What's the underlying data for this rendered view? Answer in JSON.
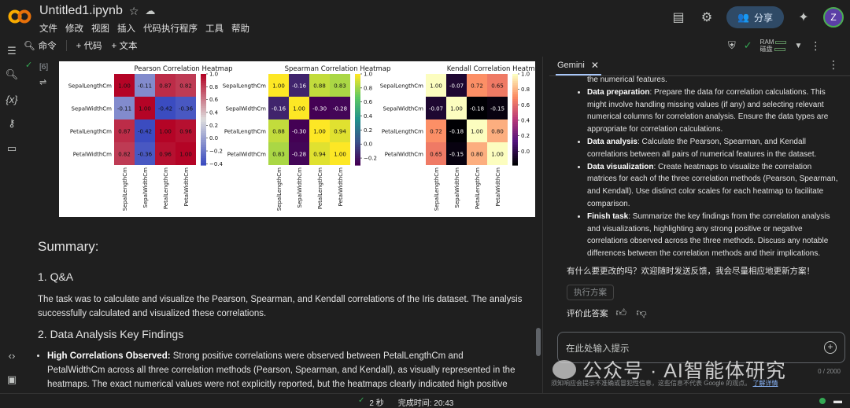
{
  "header": {
    "file_name": "Untitled1.ipynb",
    "menu": [
      "文件",
      "修改",
      "视图",
      "插入",
      "代码执行程序",
      "工具",
      "帮助"
    ],
    "share_label": "分享",
    "avatar_letter": "Z"
  },
  "toolbar": {
    "command_label": "命令",
    "code_label": "+ 代码",
    "text_label": "+ 文本",
    "ram_label": "RAM",
    "disk_label": "磁盘"
  },
  "cell": {
    "exec_count": "[6]",
    "exec_time": "2秒"
  },
  "heatmaps": [
    {
      "title": "Pearson Correlation Heatmap",
      "labels": [
        "SepalLengthCm",
        "SepalWidthCm",
        "PetalLengthCm",
        "PetalWidthCm"
      ],
      "values": [
        [
          "1.00",
          "-0.11",
          "0.87",
          "0.82"
        ],
        [
          "-0.11",
          "1.00",
          "-0.42",
          "-0.36"
        ],
        [
          "0.87",
          "-0.42",
          "1.00",
          "0.96"
        ],
        [
          "0.82",
          "-0.36",
          "0.96",
          "1.00"
        ]
      ],
      "colorbar_ticks": [
        "1.0",
        "0.8",
        "0.6",
        "0.4",
        "0.2",
        "0.0",
        "−0.2",
        "−0.4"
      ],
      "colormap": "coolwarm"
    },
    {
      "title": "Spearman Correlation Heatmap",
      "labels": [
        "SepalLengthCm",
        "SepalWidthCm",
        "PetalLengthCm",
        "PetalWidthCm"
      ],
      "values": [
        [
          "1.00",
          "-0.16",
          "0.88",
          "0.83"
        ],
        [
          "-0.16",
          "1.00",
          "-0.30",
          "-0.28"
        ],
        [
          "0.88",
          "-0.30",
          "1.00",
          "0.94"
        ],
        [
          "0.83",
          "-0.28",
          "0.94",
          "1.00"
        ]
      ],
      "colorbar_ticks": [
        "1.0",
        "0.8",
        "0.6",
        "0.4",
        "0.2",
        "0.0",
        "−0.2"
      ],
      "colormap": "viridis"
    },
    {
      "title": "Kendall Correlation Heatmap",
      "labels": [
        "SepalLengthCm",
        "SepalWidthCm",
        "PetalLengthCm",
        "PetalWidthCm"
      ],
      "values": [
        [
          "1.00",
          "-0.07",
          "0.72",
          "0.65"
        ],
        [
          "-0.07",
          "1.00",
          "-0.18",
          "-0.15"
        ],
        [
          "0.72",
          "-0.18",
          "1.00",
          "0.80"
        ],
        [
          "0.65",
          "-0.15",
          "0.80",
          "1.00"
        ]
      ],
      "colorbar_ticks": [
        "1.0",
        "0.8",
        "0.6",
        "0.4",
        "0.2",
        "0.0"
      ],
      "colormap": "magma"
    }
  ],
  "markdown": {
    "summary": "Summary:",
    "qa_heading": "1. Q&A",
    "qa_text": "The task was to calculate and visualize the Pearson, Spearman, and Kendall correlations of the Iris dataset. The analysis successfully calculated and visualized these correlations.",
    "findings_heading": "2. Data Analysis Key Findings",
    "finding_bold": "High Correlations Observed:",
    "finding_text": " Strong positive correlations were observed between PetalLengthCm and PetalWidthCm across all three correlation methods (Pearson, Spearman, and Kendall), as visually represented in the heatmaps. The exact numerical values were not explicitly reported, but the heatmaps clearly indicated high positive correlations."
  },
  "gemini": {
    "tab_label": "Gemini",
    "top_fragment": "the numerical features.",
    "items": [
      {
        "bold": "Data preparation",
        "text": ": Prepare the data for correlation calculations. This might involve handling missing values (if any) and selecting relevant numerical columns for correlation analysis. Ensure the data types are appropriate for correlation calculations."
      },
      {
        "bold": "Data analysis",
        "text": ": Calculate the Pearson, Spearman, and Kendall correlations between all pairs of numerical features in the dataset."
      },
      {
        "bold": "Data visualization",
        "text": ": Create heatmaps to visualize the correlation matrices for each of the three correlation methods (Pearson, Spearman, and Kendall). Use distinct color scales for each heatmap to facilitate comparison."
      },
      {
        "bold": "Finish task",
        "text": ": Summarize the key findings from the correlation analysis and visualizations, highlighting any strong positive or negative correlations observed across the three methods. Discuss any notable differences between the correlation methods and their implications."
      }
    ],
    "question": "有什么要更改的吗？欢迎随时发送反馈，我会尽量相应地更新方案！",
    "execute_chip": "执行方案",
    "rate_label": "评价此答案",
    "input_placeholder": "在此处输入提示",
    "char_count": "0 / 2000",
    "disclaimer": "须知响应会提示不准确或冒犯性信息，这些信息不代表 Google 的观点。",
    "disclaimer_link": "了解详情"
  },
  "statusbar": {
    "duration": "2 秒",
    "completed_at": "完成时间: 20:43"
  },
  "watermark": "公众号 · AI智能体研究"
}
